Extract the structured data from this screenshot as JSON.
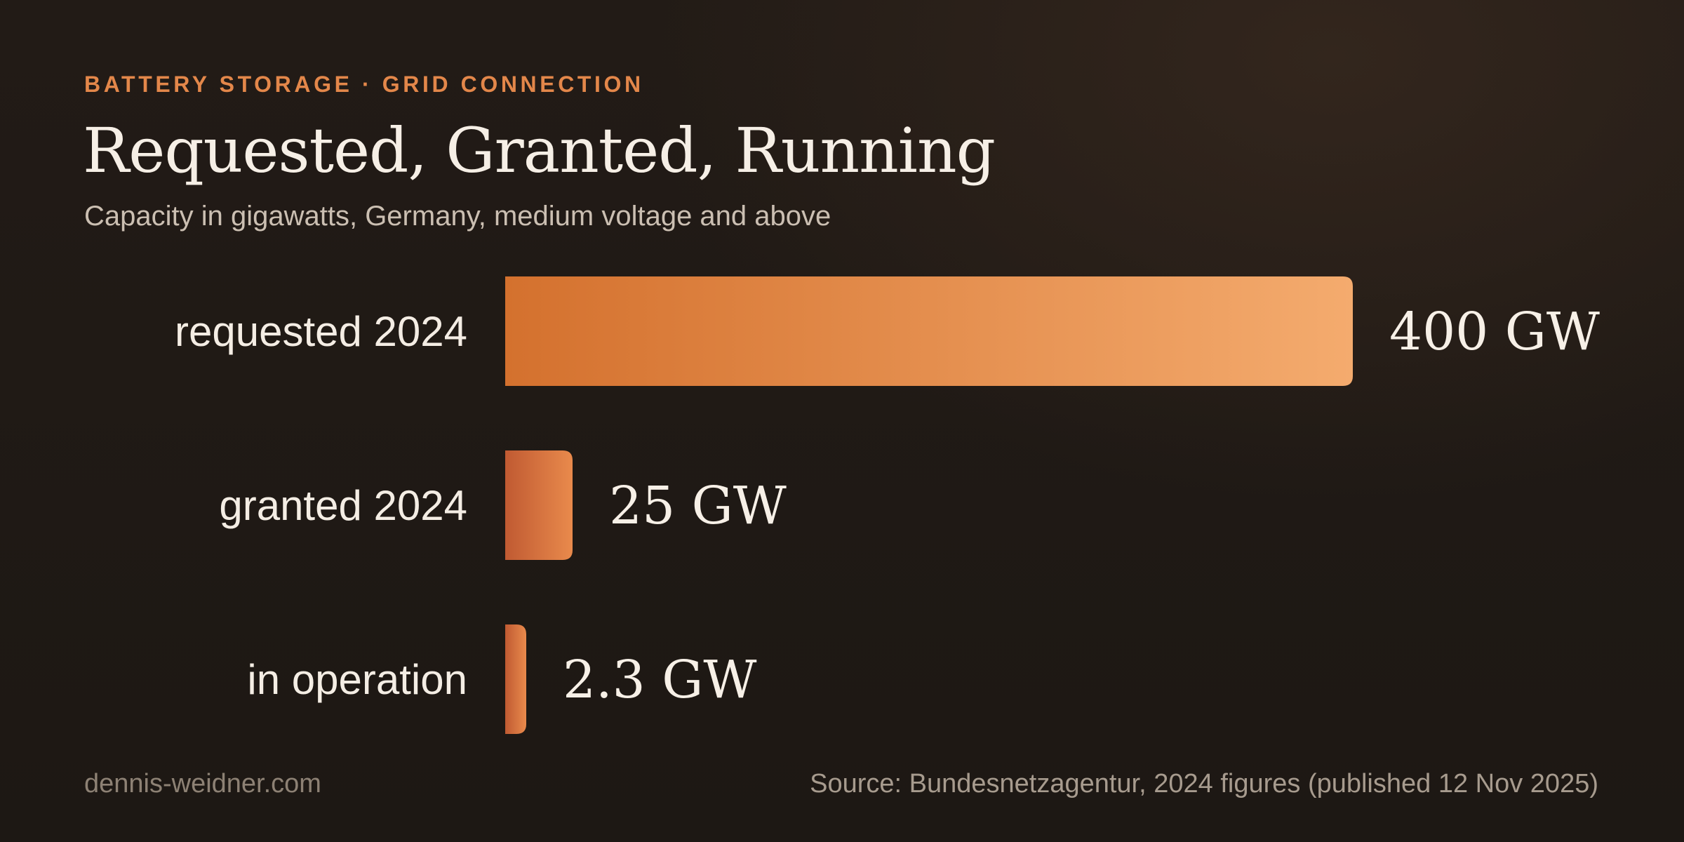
{
  "header": {
    "eyebrow": "BATTERY STORAGE · GRID CONNECTION",
    "title": "Requested, Granted, Running",
    "subtitle": "Capacity in gigawatts, Germany, medium voltage and above"
  },
  "footer": {
    "site": "dennis-weidner.com",
    "source": "Source: Bundesnetzagentur, 2024 figures (published 12 Nov 2025)"
  },
  "colors": {
    "accent": "#e3874a",
    "bar_start": "#d4712e",
    "bar_end": "#f4ab6e",
    "bar_small_start": "#c05a32",
    "bar_small_end": "#e98a4c"
  },
  "chart_data": {
    "type": "bar",
    "orientation": "horizontal",
    "categories": [
      "requested 2024",
      "granted 2024",
      "in operation"
    ],
    "values": [
      400,
      25,
      2.3
    ],
    "value_labels": [
      "400 GW",
      "25 GW",
      "2.3 GW"
    ],
    "unit": "GW",
    "title": "Requested, Granted, Running",
    "subtitle": "Capacity in gigawatts, Germany, medium voltage and above",
    "xlim": [
      0,
      400
    ],
    "grid": false,
    "legend": "none"
  }
}
